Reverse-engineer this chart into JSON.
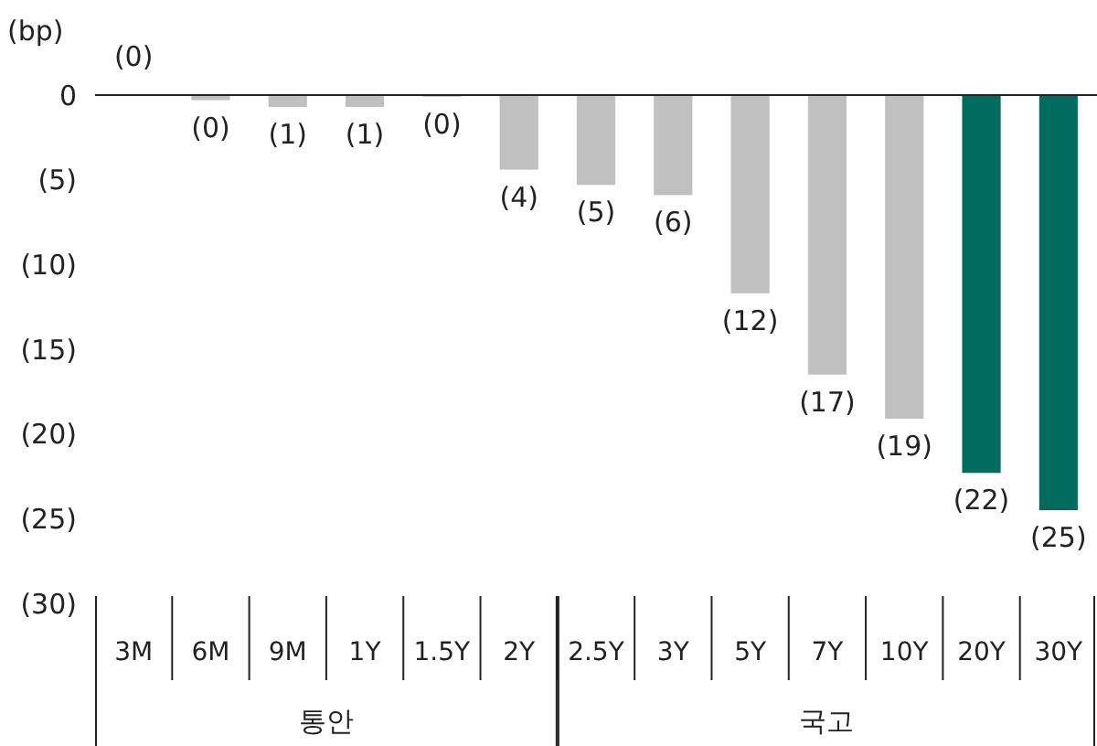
{
  "chart_data": {
    "type": "bar",
    "ylabel": "(bp)",
    "categories": [
      "3M",
      "6M",
      "9M",
      "1Y",
      "1.5Y",
      "2Y",
      "2.5Y",
      "3Y",
      "5Y",
      "7Y",
      "10Y",
      "20Y",
      "30Y"
    ],
    "values": [
      0,
      -0.3,
      -0.7,
      -0.7,
      -0.1,
      -4.4,
      -5.3,
      -5.9,
      -11.7,
      -16.5,
      -19.1,
      -22.3,
      -24.5
    ],
    "value_labels": [
      "(0)",
      "(0)",
      "(1)",
      "(1)",
      "(0)",
      "(4)",
      "(5)",
      "(6)",
      "(12)",
      "(17)",
      "(19)",
      "(22)",
      "(25)"
    ],
    "colors": [
      "#c0c0c0",
      "#c0c0c0",
      "#c0c0c0",
      "#c0c0c0",
      "#c0c0c0",
      "#c0c0c0",
      "#c0c0c0",
      "#c0c0c0",
      "#c0c0c0",
      "#c0c0c0",
      "#c0c0c0",
      "#006b5f",
      "#006b5f"
    ],
    "ylim": [
      -30,
      0
    ],
    "yticks": [
      {
        "value": 0,
        "label": "0"
      },
      {
        "value": -5,
        "label": "(5)"
      },
      {
        "value": -10,
        "label": "(10)"
      },
      {
        "value": -15,
        "label": "(15)"
      },
      {
        "value": -20,
        "label": "(20)"
      },
      {
        "value": -25,
        "label": "(25)"
      },
      {
        "value": -30,
        "label": "(30)"
      }
    ],
    "annotations": [
      "통안",
      "국고"
    ],
    "grid": false
  }
}
